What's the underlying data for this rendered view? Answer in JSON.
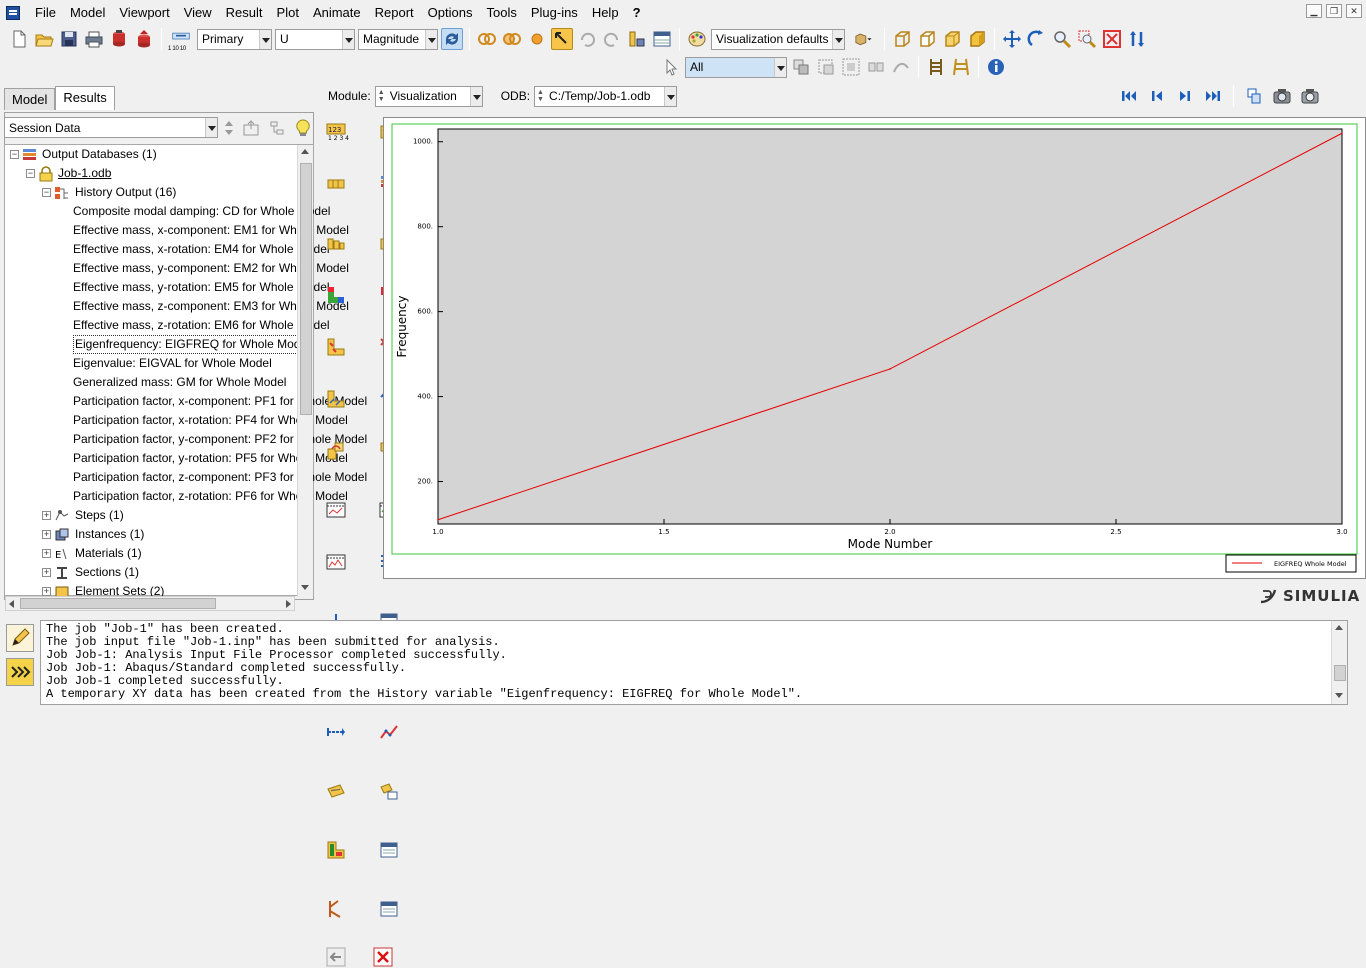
{
  "menu": [
    "File",
    "Model",
    "Viewport",
    "View",
    "Result",
    "Plot",
    "Animate",
    "Report",
    "Options",
    "Tools",
    "Plug-ins",
    "Help"
  ],
  "help_cursor": "?",
  "toolbar": {
    "step_frame_label": "1 10 10",
    "primary_combo": "Primary",
    "variable_combo": "U",
    "invariant_combo": "Magnitude",
    "visualization_defaults": "Visualization defaults",
    "selection_filter": "All"
  },
  "context": {
    "module_label": "Module:",
    "module_value": "Visualization",
    "odb_label": "ODB:",
    "odb_value": "C:/Temp/Job-1.odb"
  },
  "tabs": [
    "Model",
    "Results"
  ],
  "session_combo": "Session Data",
  "tree": {
    "root": "Output Databases (1)",
    "odb": "Job-1.odb",
    "history": "History Output (16)",
    "history_items": [
      "Composite modal damping: CD for Whole Model",
      "Effective mass, x-component: EM1 for Whole Model",
      "Effective mass, x-rotation: EM4 for Whole Model",
      "Effective mass, y-component: EM2 for Whole Model",
      "Effective mass, y-rotation: EM5 for Whole Model",
      "Effective mass, z-component: EM3 for Whole Model",
      "Effective mass, z-rotation: EM6 for Whole Model",
      "Eigenfrequency: EIGFREQ for Whole Model",
      "Eigenvalue: EIGVAL for Whole Model",
      "Generalized mass: GM for Whole Model",
      "Participation factor, x-component: PF1 for Whole Model",
      "Participation factor, x-rotation: PF4 for Whole Model",
      "Participation factor, y-component: PF2 for Whole Model",
      "Participation factor, y-rotation: PF5 for Whole Model",
      "Participation factor, z-component: PF3 for Whole Model",
      "Participation factor, z-rotation: PF6 for Whole Model"
    ],
    "more": [
      "Steps (1)",
      "Instances (1)",
      "Materials (1)",
      "Sections (1)",
      "Element Sets (2)"
    ]
  },
  "chart_data": {
    "type": "line",
    "xlabel": "Mode Number",
    "ylabel": "Frequency",
    "xlim": [
      1.0,
      3.0
    ],
    "ylim": [
      100,
      1030
    ],
    "xticks": [
      "1.0",
      "1.5",
      "2.0",
      "2.5",
      "3.0"
    ],
    "xtick_values": [
      1.0,
      1.5,
      2.0,
      2.5,
      3.0
    ],
    "yticks": [
      "200.",
      "400.",
      "600.",
      "800.",
      "1000."
    ],
    "ytick_values": [
      200,
      400,
      600,
      800,
      1000
    ],
    "series": [
      {
        "name": "EIGFREQ Whole Model",
        "x": [
          1,
          2,
          3
        ],
        "y": [
          110,
          465,
          1020
        ],
        "color": "#e60000"
      }
    ],
    "legend": "bottom-right",
    "plot_bg": "#d4d4d4"
  },
  "brand": "SIMULIA",
  "messages": [
    "The job \"Job-1\" has been created.",
    "The job input file \"Job-1.inp\" has been submitted for analysis.",
    "Job Job-1: Analysis Input File Processor completed successfully.",
    "Job Job-1: Abaqus/Standard completed successfully.",
    "Job Job-1 completed successfully.",
    "A temporary XY data has been created from the History variable \"Eigenfrequency: EIGFREQ for Whole Model\"."
  ]
}
